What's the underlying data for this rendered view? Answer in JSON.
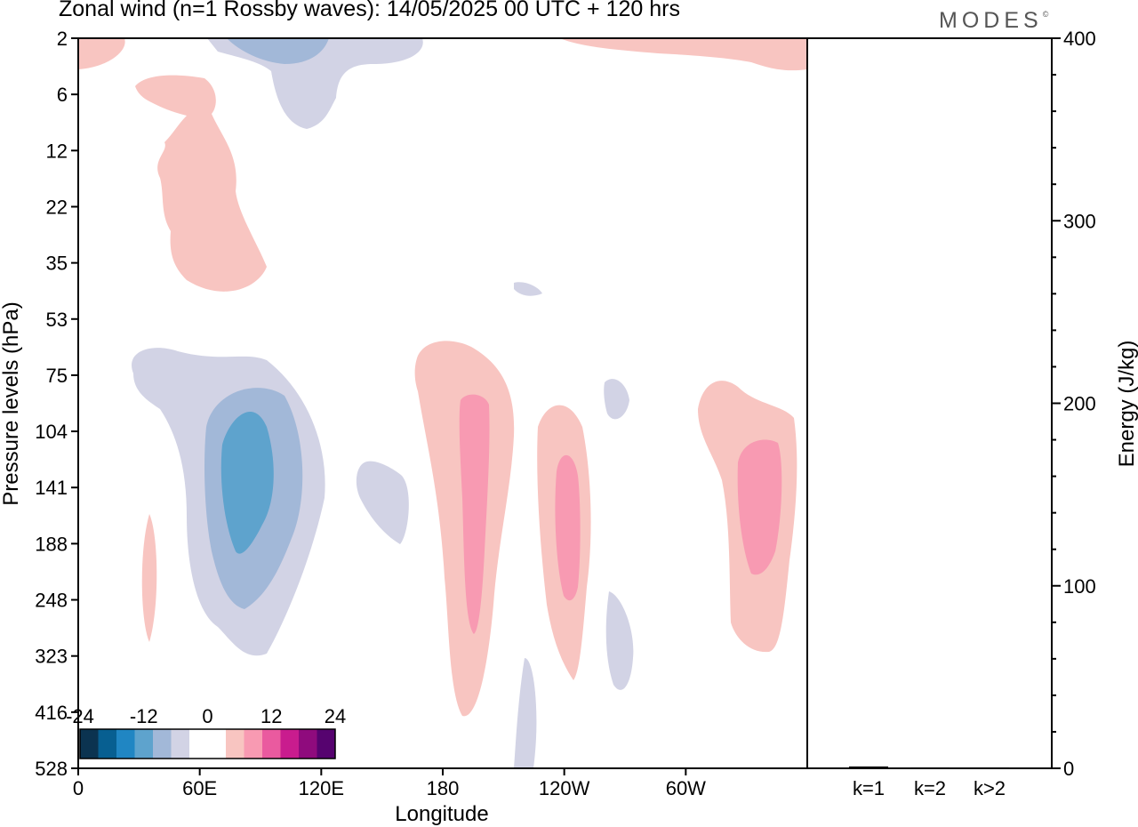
{
  "header": {
    "title": "Zonal wind (n=1 Rossby waves):  14/05/2025  00 UTC  + 120 hrs",
    "logo": "MODES",
    "logo_mark": "©"
  },
  "chart_data": [
    {
      "type": "heatmap",
      "title": "Zonal wind (n=1 Rossby waves):  14/05/2025  00 UTC  + 120 hrs",
      "xlabel": "Longitude",
      "ylabel": "Pressure levels (hPa)",
      "x_ticks": [
        "0",
        "60E",
        "120E",
        "180",
        "120W",
        "60W"
      ],
      "x_tick_values": [
        0,
        60,
        120,
        180,
        240,
        300
      ],
      "xlim": [
        0,
        360
      ],
      "y_ticks": [
        "2",
        "6",
        "12",
        "22",
        "35",
        "53",
        "75",
        "104",
        "141",
        "188",
        "248",
        "323",
        "416",
        "528"
      ],
      "y_scale": "pressure levels, top to bottom",
      "colorbar": {
        "tick_labels": [
          "-24",
          "-12",
          "0",
          "12",
          "24"
        ],
        "levels": [
          -24,
          -21,
          -18,
          -15,
          -12,
          -9,
          -6,
          -3,
          0,
          3,
          6,
          9,
          12,
          15,
          18,
          21,
          24
        ],
        "colors": [
          "#0b3350",
          "#075f91",
          "#2086c3",
          "#5ea3cd",
          "#a2b8d8",
          "#d2d3e5",
          "#ffffff",
          "#ffffff",
          "#f8c5c1",
          "#f89ab2",
          "#ea5a9f",
          "#c91c8e",
          "#8f0b7d",
          "#56036f"
        ]
      },
      "contours": [
        {
          "name": "upper-left-positive",
          "level": 3,
          "color": "#f8c5c1"
        },
        {
          "name": "top-negative",
          "level": -3,
          "color": "#d2d3e5"
        },
        {
          "name": "top-negative-core",
          "level": -6,
          "color": "#a2b8d8"
        },
        {
          "name": "top-right-positive",
          "level": 3,
          "color": "#f8c5c1"
        },
        {
          "name": "negative-60e-outer",
          "level": -3,
          "color": "#d2d3e5"
        },
        {
          "name": "negative-60e-middle",
          "level": -6,
          "color": "#a2b8d8"
        },
        {
          "name": "negative-60e-core",
          "level": -9,
          "color": "#5ea3cd"
        },
        {
          "name": "positive-180-outer",
          "level": 3,
          "color": "#f8c5c1"
        },
        {
          "name": "positive-180-core",
          "level": 6,
          "color": "#f89ab2"
        },
        {
          "name": "positive-120w-outer",
          "level": 3,
          "color": "#f8c5c1"
        },
        {
          "name": "positive-120w-core",
          "level": 6,
          "color": "#f89ab2"
        },
        {
          "name": "positive-60w-outer",
          "level": 3,
          "color": "#f8c5c1"
        },
        {
          "name": "positive-60w-core",
          "level": 6,
          "color": "#f89ab2"
        }
      ],
      "grid": false
    },
    {
      "type": "bar",
      "ylabel": "Energy (J/kg)",
      "categories": [
        "k=1",
        "k=2",
        "k>2"
      ],
      "values": [
        1,
        0.5,
        0.5
      ],
      "ylim": [
        0,
        400
      ],
      "y_ticks": [
        "0",
        "100",
        "200",
        "300",
        "400"
      ]
    }
  ]
}
